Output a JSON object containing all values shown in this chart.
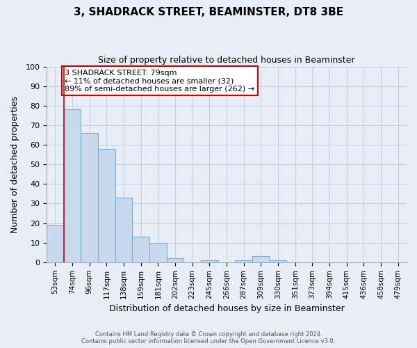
{
  "title": "3, SHADRACK STREET, BEAMINSTER, DT8 3BE",
  "subtitle": "Size of property relative to detached houses in Beaminster",
  "xlabel": "Distribution of detached houses by size in Beaminster",
  "ylabel": "Number of detached properties",
  "bin_labels": [
    "53sqm",
    "74sqm",
    "96sqm",
    "117sqm",
    "138sqm",
    "159sqm",
    "181sqm",
    "202sqm",
    "223sqm",
    "245sqm",
    "266sqm",
    "287sqm",
    "309sqm",
    "330sqm",
    "351sqm",
    "373sqm",
    "394sqm",
    "415sqm",
    "436sqm",
    "458sqm",
    "479sqm"
  ],
  "bar_heights": [
    19,
    78,
    66,
    58,
    33,
    13,
    10,
    2,
    0,
    1,
    0,
    1,
    3,
    1,
    0,
    0,
    0,
    0,
    0,
    0,
    0
  ],
  "bar_color": "#c8d9ed",
  "bar_edge_color": "#7bafd4",
  "marker_label_line1": "3 SHADRACK STREET: 79sqm",
  "marker_label_line2": "← 11% of detached houses are smaller (32)",
  "marker_label_line3": "89% of semi-detached houses are larger (262) →",
  "marker_color": "#cc0000",
  "ylim": [
    0,
    100
  ],
  "yticks": [
    0,
    10,
    20,
    30,
    40,
    50,
    60,
    70,
    80,
    90,
    100
  ],
  "footer_line1": "Contains HM Land Registry data © Crown copyright and database right 2024.",
  "footer_line2": "Contains public sector information licensed under the Open Government Licence v3.0.",
  "background_color": "#e8eef8",
  "plot_bg_color": "#e8eef8",
  "grid_color": "#c8d0df"
}
